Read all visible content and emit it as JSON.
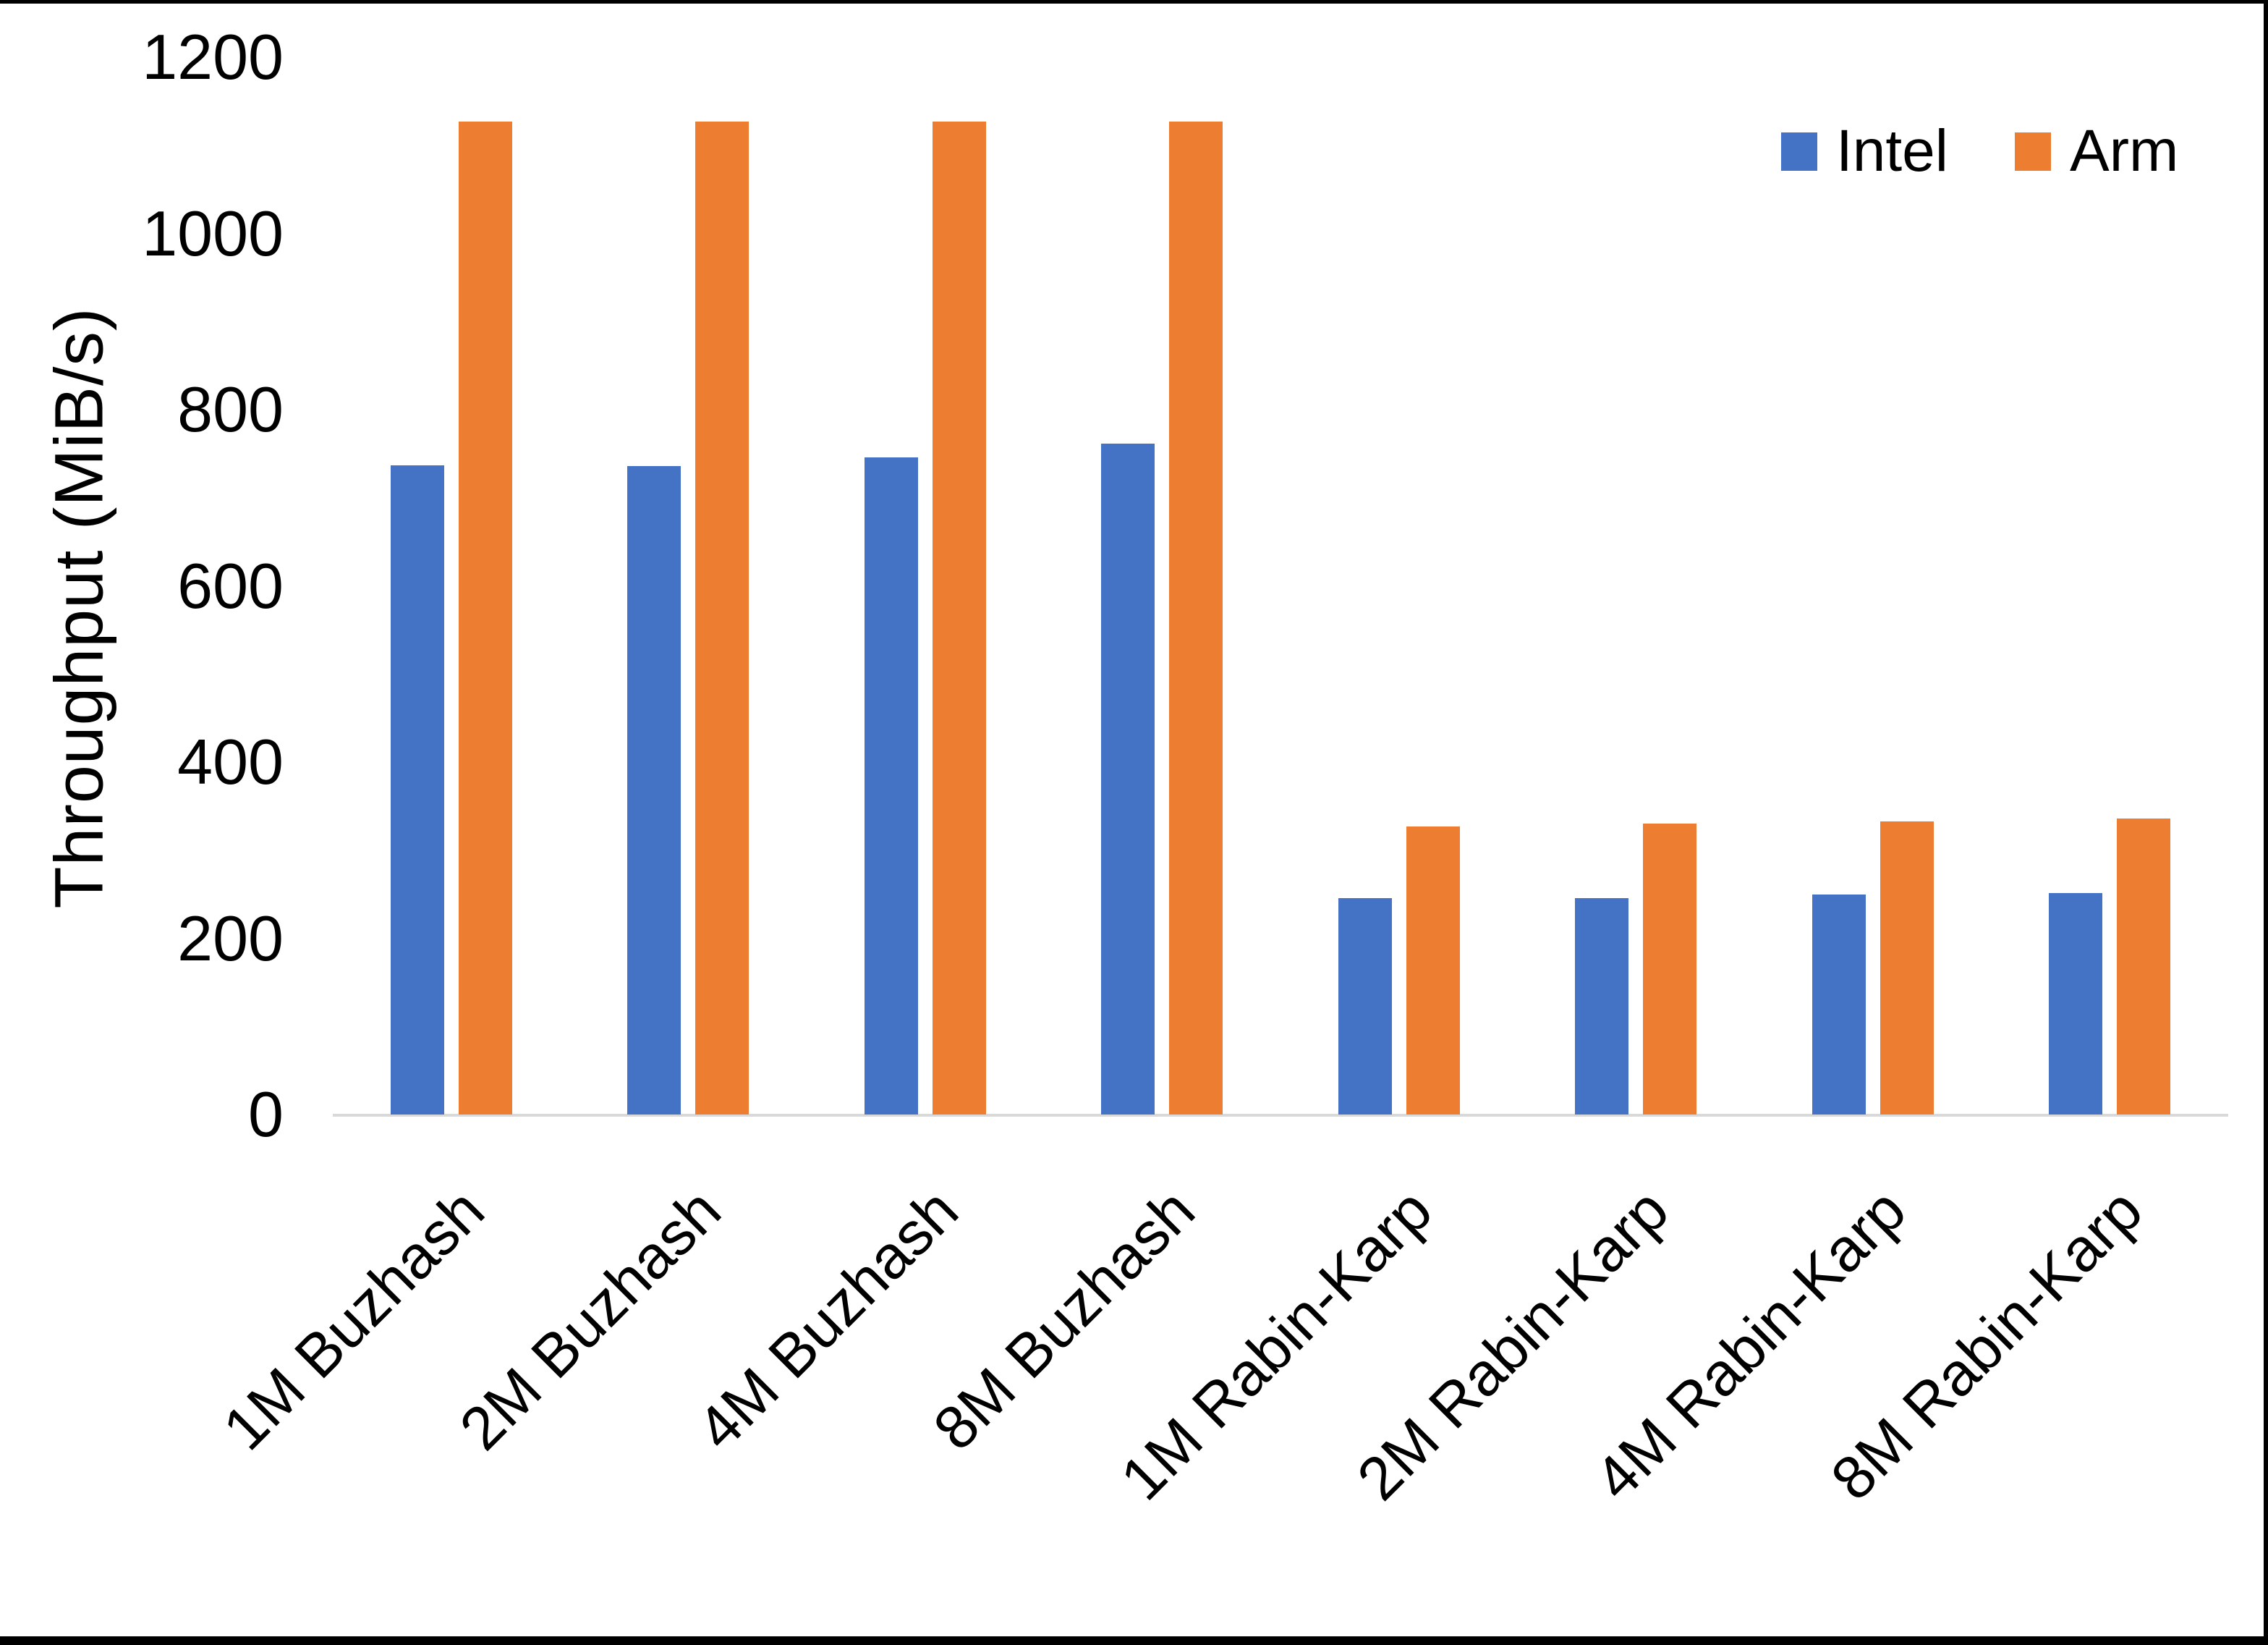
{
  "figure": {
    "background": "#ffffff",
    "frame_border_color": "#000000",
    "axis_line_color": "#d9d9d9"
  },
  "chart_data": {
    "type": "bar",
    "title": "",
    "xlabel": "",
    "ylabel": "Throughput (MiB/s)",
    "ylim": [
      0,
      1200
    ],
    "yticks": [
      0,
      200,
      400,
      600,
      800,
      1000,
      1200
    ],
    "grid": false,
    "legend_position": "top-right",
    "categories": [
      "1M Buzhash",
      "2M Buzhash",
      "4M Buzhash",
      "8M Buzhash",
      "1M Rabin-Karp",
      "2M Rabin-Karp",
      "4M Rabin-Karp",
      "8M Rabin-Karp"
    ],
    "series": [
      {
        "name": "Intel",
        "color": "#4472C4",
        "values": [
          737,
          736,
          746,
          761,
          246,
          246,
          250,
          251
        ]
      },
      {
        "name": "Arm",
        "color": "#ED7D31",
        "values": [
          1127,
          1127,
          1127,
          1127,
          327,
          330,
          333,
          336
        ]
      }
    ]
  }
}
